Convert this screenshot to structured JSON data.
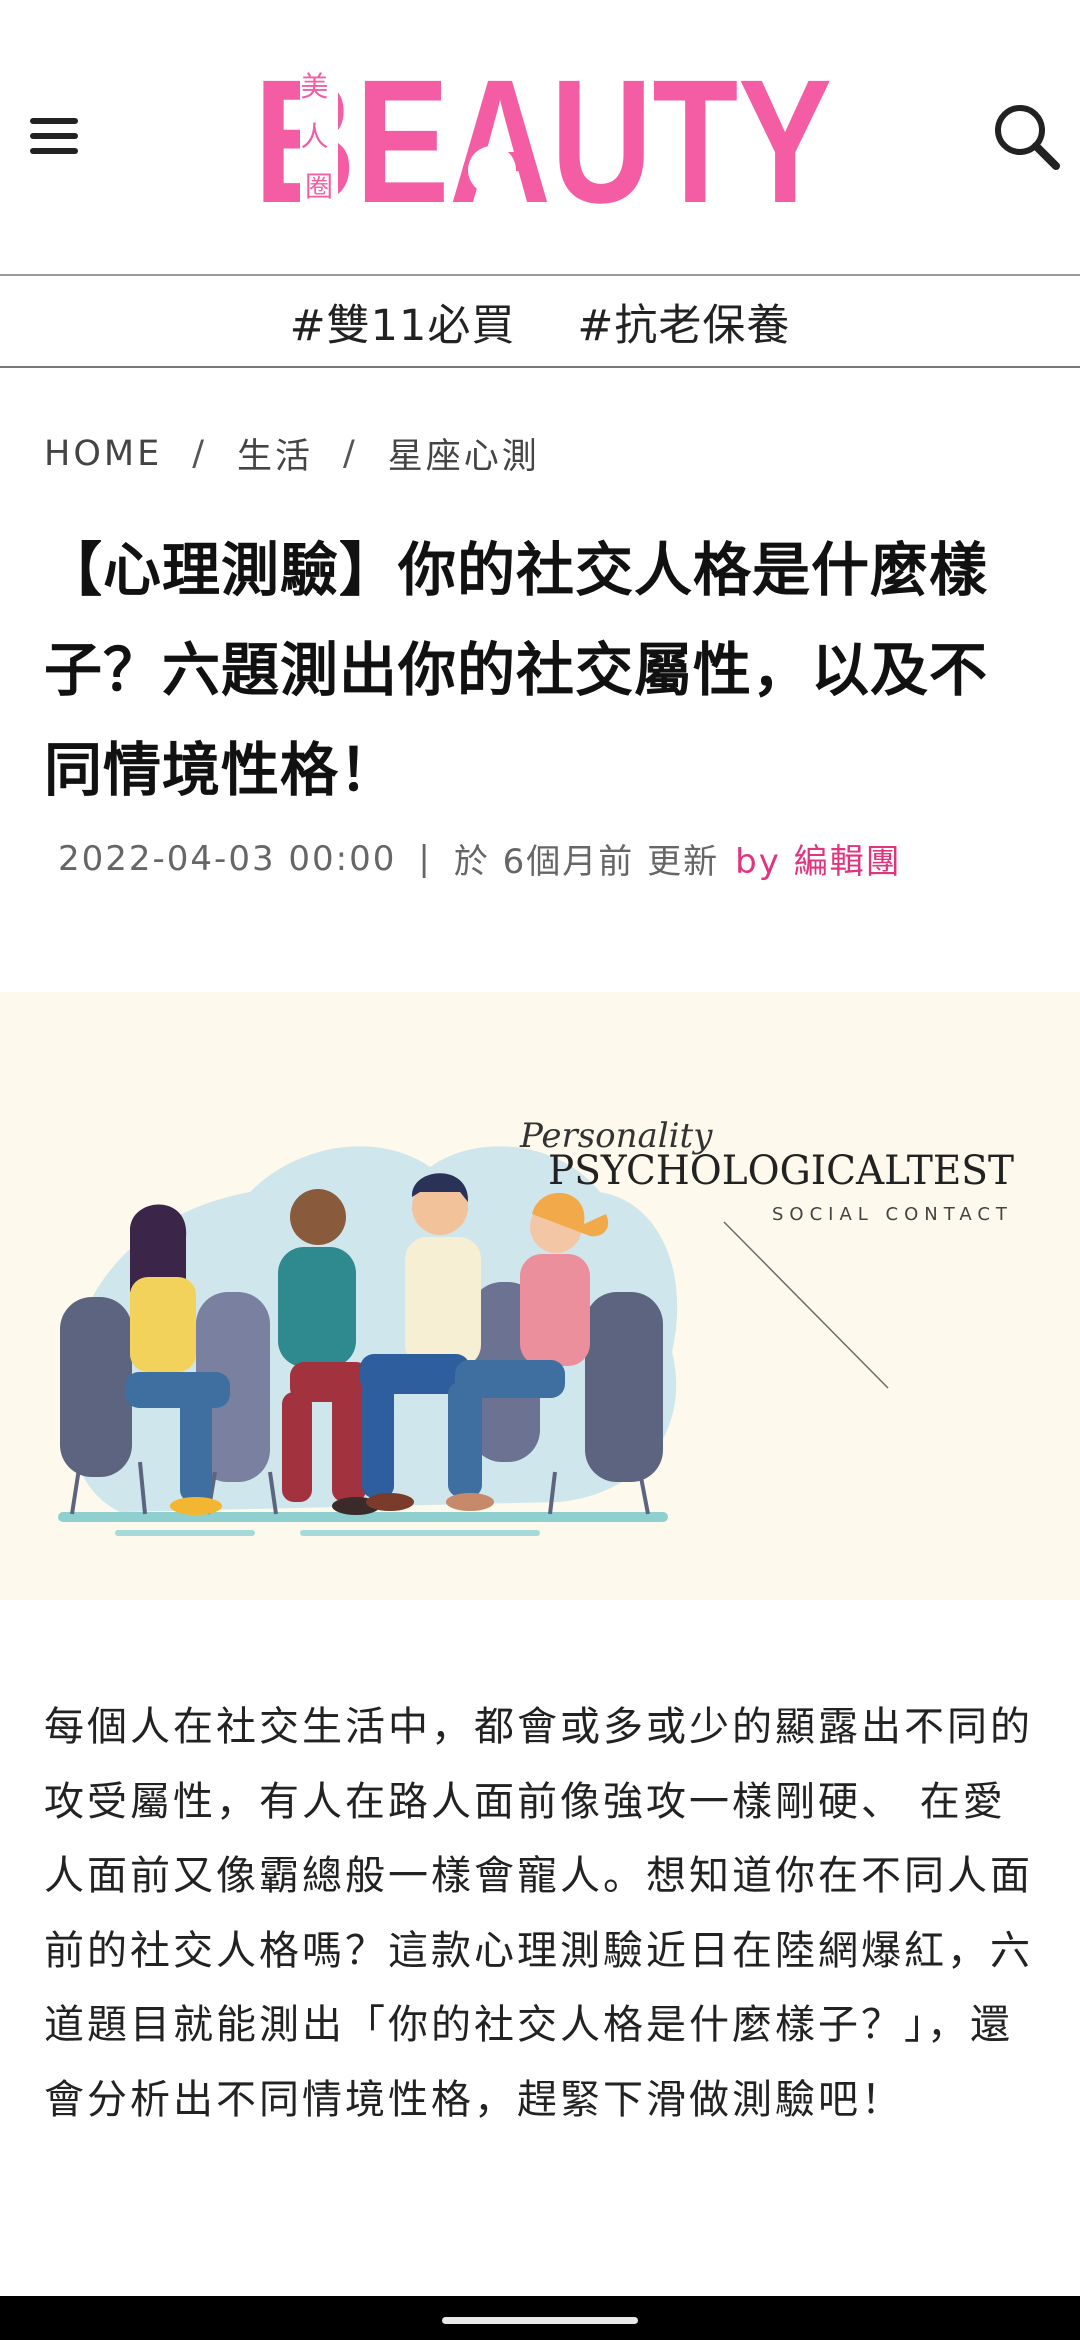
{
  "header": {
    "logo_text": "BEAUTY",
    "logo_subtitle": "美人圈",
    "brand_color": "#f45da3",
    "menu_icon": "hamburger-icon",
    "search_icon": "search-icon"
  },
  "tags": [
    "#雙11必買",
    "#抗老保養"
  ],
  "breadcrumb": [
    "HOME",
    "生活",
    "星座心測"
  ],
  "breadcrumb_separator": "/",
  "article": {
    "title": "【心理測驗】你的社交人格是什麼樣子？六題測出你的社交屬性，以及不同情境性格！",
    "date": "2022-04-03 00:00",
    "meta_separator": "|",
    "updated": "於 6個月前 更新",
    "by_prefix": "by",
    "author": "編輯團",
    "author_color": "#e0357e"
  },
  "hero": {
    "script_text": "Personality",
    "headline": "PSYCHOLOGICALTEST",
    "subline": "SOCIAL CONTACT",
    "background": "#fdf9ec"
  },
  "body": "每個人在社交生活中，都會或多或少的顯露出不同的攻受屬性，有人在路人面前像強攻一樣剛硬、 在愛人面前又像霸總般一樣會寵人。想知道你在不同人面前的社交人格嗎？這款心理測驗近日在陸網爆紅，六道題目就能測出「你的社交人格是什麼樣子？」，還會分析出不同情境性格，趕緊下滑做測驗吧！"
}
